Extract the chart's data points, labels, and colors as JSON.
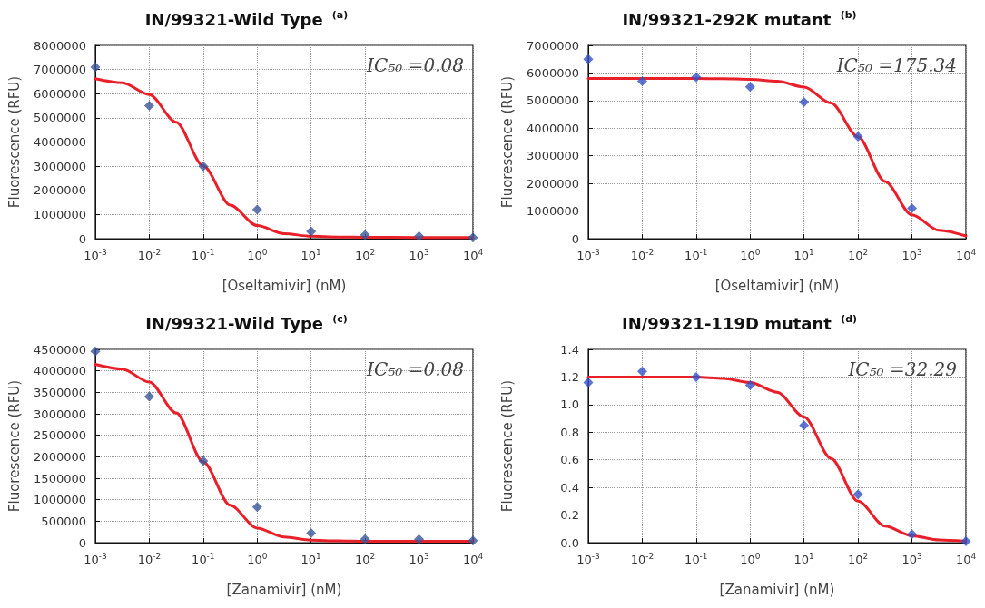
{
  "chart_data": [
    {
      "type": "scatter",
      "title": "IN/99321-Wild Type $^{(a)}$",
      "xlabel": "[Oseltamivir] (nM)",
      "ylabel": "Fluorescence (RFU)",
      "log": "x",
      "grid": true,
      "annotations": [
        "IC₅₀ =0.08"
      ],
      "xlim": [
        0.001,
        10000
      ],
      "xticks": [
        {
          "value": 0.001,
          "label": "10$^{-3}$"
        },
        {
          "value": 0.01,
          "label": "10$^{-2}$"
        },
        {
          "value": 0.1,
          "label": "10$^{-1}$"
        },
        {
          "value": 1,
          "label": "10$^{0}$"
        },
        {
          "value": 10,
          "label": "10$^{1}$"
        },
        {
          "value": 100,
          "label": "10$^{2}$"
        },
        {
          "value": 1000,
          "label": "10$^{3}$"
        },
        {
          "value": 10000,
          "label": "10$^{4}$"
        }
      ],
      "ylim": [
        0,
        8000000
      ],
      "yticks": [
        0,
        1000000,
        2000000,
        3000000,
        4000000,
        5000000,
        6000000,
        7000000,
        8000000
      ],
      "series": [
        {
          "marker": "diamond",
          "color": "#3b5596",
          "x": [
            0.001,
            0.01,
            0.1,
            1,
            10,
            100,
            1000,
            10000
          ],
          "values": [
            7100000,
            5500000,
            3000000,
            1200000,
            300000,
            150000,
            100000,
            50000
          ]
        },
        {
          "type": "line",
          "marker": "none",
          "color": "#e8202a",
          "x": [
            0.001,
            0.00316,
            0.01,
            0.0316,
            0.1,
            0.316,
            1,
            3.16,
            10,
            31.6,
            100,
            1000,
            10000
          ],
          "values": [
            6620000,
            6450000,
            5960000,
            4820000,
            3010000,
            1390000,
            540000,
            210000,
            100000,
            70000,
            60000,
            50000,
            50000
          ]
        }
      ]
    },
    {
      "type": "scatter",
      "title": "IN/99321-292K mutant $^{(b)}$",
      "xlabel": "[Oseltamivir] (nM)",
      "ylabel": "Fluorescence (RFU)",
      "log": "x",
      "grid": true,
      "annotations": [
        "IC₅₀ =175.34"
      ],
      "xlim": [
        0.001,
        10000
      ],
      "xticks": [
        {
          "value": 0.001,
          "label": "10$^{-3}$"
        },
        {
          "value": 0.01,
          "label": "10$^{-2}$"
        },
        {
          "value": 0.1,
          "label": "10$^{-1}$"
        },
        {
          "value": 1,
          "label": "10$^{0}$"
        },
        {
          "value": 10,
          "label": "10$^{1}$"
        },
        {
          "value": 100,
          "label": "10$^{2}$"
        },
        {
          "value": 1000,
          "label": "10$^{3}$"
        },
        {
          "value": 10000,
          "label": "10$^{4}$"
        }
      ],
      "ylim": [
        0,
        7000000
      ],
      "yticks": [
        0,
        1000000,
        2000000,
        3000000,
        4000000,
        5000000,
        6000000,
        7000000
      ],
      "series": [
        {
          "marker": "diamond",
          "color": "#3553c4",
          "x": [
            0.001,
            0.01,
            0.1,
            1,
            10,
            100,
            1000
          ],
          "values": [
            6500000,
            5700000,
            5850000,
            5500000,
            4950000,
            3700000,
            1100000
          ]
        },
        {
          "type": "line",
          "marker": "none",
          "color": "#e8202a",
          "x": [
            0.001,
            0.01,
            0.1,
            0.316,
            1,
            3.16,
            10,
            31.6,
            100,
            316,
            1000,
            3162,
            10000
          ],
          "values": [
            5800000,
            5800000,
            5800000,
            5790000,
            5770000,
            5700000,
            5490000,
            4910000,
            3690000,
            2070000,
            860000,
            300000,
            100000
          ]
        }
      ]
    },
    {
      "type": "scatter",
      "title": "IN/99321-Wild Type $^{(c)}$",
      "xlabel": "[Zanamivir] (nM)",
      "ylabel": "Fluorescence (RFU)",
      "log": "x",
      "grid": true,
      "annotations": [
        "IC₅₀ =0.08"
      ],
      "xlim": [
        0.001,
        10000
      ],
      "xticks": [
        {
          "value": 0.001,
          "label": "10$^{-3}$"
        },
        {
          "value": 0.01,
          "label": "10$^{-2}$"
        },
        {
          "value": 0.1,
          "label": "10$^{-1}$"
        },
        {
          "value": 1,
          "label": "10$^{0}$"
        },
        {
          "value": 10,
          "label": "10$^{1}$"
        },
        {
          "value": 100,
          "label": "10$^{2}$"
        },
        {
          "value": 1000,
          "label": "10$^{3}$"
        },
        {
          "value": 10000,
          "label": "10$^{4}$"
        }
      ],
      "ylim": [
        0,
        4500000
      ],
      "yticks": [
        0,
        500000,
        1000000,
        1500000,
        2000000,
        2500000,
        3000000,
        3500000,
        4000000,
        4500000
      ],
      "series": [
        {
          "marker": "diamond",
          "color": "#3b5596",
          "x": [
            0.001,
            0.01,
            0.1,
            1,
            10,
            100,
            1000,
            10000
          ],
          "values": [
            4450000,
            3400000,
            1900000,
            830000,
            220000,
            80000,
            80000,
            50000
          ]
        },
        {
          "type": "line",
          "marker": "none",
          "color": "#e8202a",
          "x": [
            0.001,
            0.00316,
            0.01,
            0.0316,
            0.1,
            0.316,
            1,
            3.16,
            10,
            31.6,
            100,
            1000,
            10000
          ],
          "values": [
            4150000,
            4040000,
            3740000,
            3020000,
            1880000,
            870000,
            340000,
            130000,
            60000,
            40000,
            30000,
            30000,
            30000
          ]
        }
      ]
    },
    {
      "type": "scatter",
      "title": "IN/99321-119D mutant $^{(d)}$",
      "xlabel": "[Zanamivir] (nM)",
      "ylabel": "Fluorescence (RFU)",
      "log": "x",
      "grid": true,
      "annotations": [
        "IC₅₀ =32.29"
      ],
      "xlim": [
        0.001,
        10000
      ],
      "xticks": [
        {
          "value": 0.001,
          "label": "10$^{-3}$"
        },
        {
          "value": 0.01,
          "label": "10$^{-2}$"
        },
        {
          "value": 0.1,
          "label": "10$^{-1}$"
        },
        {
          "value": 1,
          "label": "10$^{0}$"
        },
        {
          "value": 10,
          "label": "10$^{1}$"
        },
        {
          "value": 100,
          "label": "10$^{2}$"
        },
        {
          "value": 1000,
          "label": "10$^{3}$"
        },
        {
          "value": 10000,
          "label": "10$^{4}$"
        }
      ],
      "ylim": [
        0,
        1.4
      ],
      "yticks": [
        {
          "value": 0,
          "label": "0.0"
        },
        0.2,
        0.4,
        0.6,
        0.8,
        {
          "value": 1,
          "label": "1.0"
        },
        1.2,
        1.4
      ],
      "series": [
        {
          "marker": "diamond",
          "color": "#3553c4",
          "x": [
            0.001,
            0.01,
            0.1,
            1,
            10,
            100,
            1000,
            10000
          ],
          "values": [
            1.16,
            1.24,
            1.2,
            1.14,
            0.85,
            0.35,
            0.06,
            0.01
          ]
        },
        {
          "type": "line",
          "marker": "none",
          "color": "#e8202a",
          "x": [
            0.001,
            0.01,
            0.1,
            0.316,
            1,
            3.16,
            10,
            31.6,
            100,
            316,
            1000,
            3162,
            10000
          ],
          "values": [
            1.2,
            1.2,
            1.2,
            1.19,
            1.16,
            1.09,
            0.91,
            0.61,
            0.3,
            0.12,
            0.05,
            0.02,
            0.01
          ]
        }
      ]
    }
  ]
}
